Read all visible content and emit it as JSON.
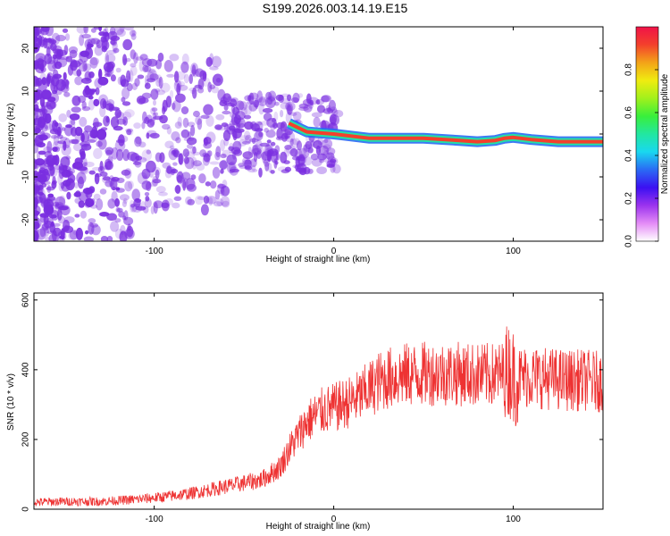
{
  "title": "S199.2026.003.14.19.E15",
  "colors": {
    "snr_line": "#ee3333",
    "blob": "#7a2ee0",
    "colormap": [
      "#ffffff",
      "#e48cf6",
      "#9b33ee",
      "#3b10f2",
      "#2a6af4",
      "#19d8f0",
      "#22e7a0",
      "#39ef3b",
      "#a2f01c",
      "#f0ec10",
      "#f3a319",
      "#f3402c",
      "#f01348"
    ]
  },
  "chart_data": [
    {
      "type": "heatmap",
      "title": "S199.2026.003.14.19.E15",
      "xlabel": "Height of straight line (km)",
      "ylabel": "Frequency (Hz)",
      "xlim": [
        -167,
        150
      ],
      "ylim": [
        -25,
        25
      ],
      "xticks": [
        -100,
        0,
        100
      ],
      "yticks": [
        -20,
        -10,
        0,
        10,
        20
      ],
      "colorbar": {
        "label": "Normalized spectral amplitude",
        "range": [
          0,
          1
        ],
        "ticks": [
          "0.0",
          "0.2",
          "0.4",
          "0.6",
          "0.8"
        ]
      },
      "ridge": {
        "description_x": [
          -25,
          -15,
          0,
          20,
          50,
          70,
          80,
          90,
          95,
          100,
          110,
          125,
          140,
          150
        ],
        "frequency": [
          2.5,
          0.5,
          0.0,
          -1.0,
          -1.0,
          -1.5,
          -1.8,
          -1.5,
          -1.0,
          -0.8,
          -1.3,
          -1.8,
          -1.8,
          -1.8
        ]
      }
    },
    {
      "type": "line",
      "xlabel": "Height of straight line (km)",
      "ylabel": "SNR (10 * v/v)",
      "xlim": [
        -167,
        150
      ],
      "ylim": [
        0,
        620
      ],
      "xticks": [
        -100,
        0,
        100
      ],
      "yticks": [
        0,
        200,
        400,
        600
      ],
      "series": [
        {
          "x": [
            -167,
            -150,
            -130,
            -110,
            -95,
            -80,
            -70,
            -60,
            -50,
            -40,
            -30,
            -25,
            -20,
            -15,
            -10,
            -5,
            0,
            5,
            10,
            15,
            20,
            25,
            30,
            40,
            50,
            60,
            70,
            80,
            90,
            95,
            98,
            100,
            102,
            105,
            110,
            120,
            130,
            140,
            150
          ],
          "y": [
            20,
            22,
            22,
            28,
            35,
            45,
            55,
            65,
            75,
            85,
            120,
            170,
            210,
            250,
            270,
            285,
            290,
            300,
            310,
            325,
            345,
            365,
            375,
            385,
            388,
            390,
            388,
            385,
            385,
            390,
            400,
            380,
            375,
            380,
            380,
            375,
            370,
            370,
            365
          ]
        }
      ]
    }
  ]
}
